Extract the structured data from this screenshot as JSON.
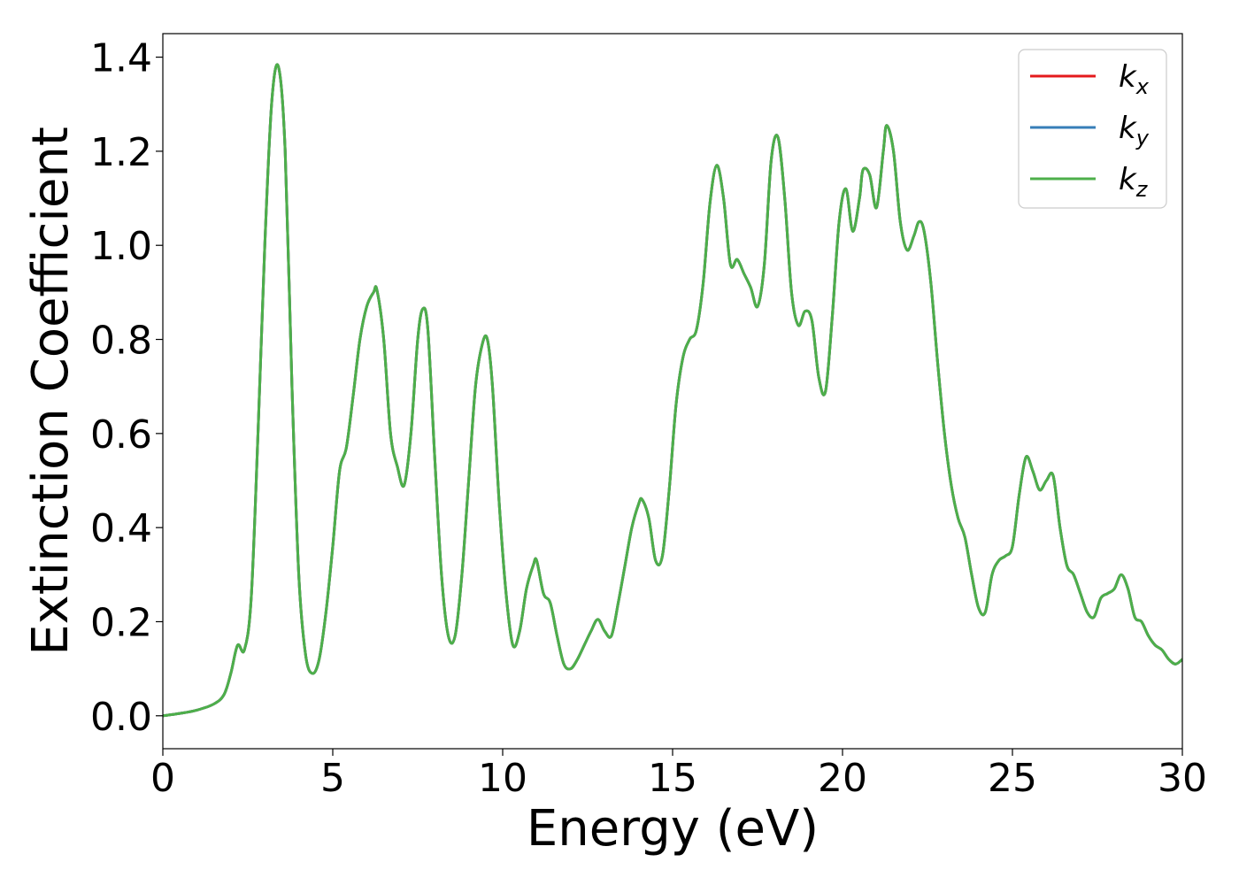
{
  "chart_data": {
    "type": "line",
    "title": "",
    "xlabel": "Energy (eV)",
    "ylabel": "Extinction Coefficient",
    "xlim": [
      0,
      30
    ],
    "ylim": [
      -0.07,
      1.45
    ],
    "xticks": [
      0,
      5,
      10,
      15,
      20,
      25,
      30
    ],
    "xtick_labels": [
      "0",
      "5",
      "10",
      "15",
      "20",
      "25",
      "30"
    ],
    "yticks": [
      0.0,
      0.2,
      0.4,
      0.6,
      0.8,
      1.0,
      1.2,
      1.4
    ],
    "ytick_labels": [
      "0.0",
      "0.2",
      "0.4",
      "0.6",
      "0.8",
      "1.0",
      "1.2",
      "1.4"
    ],
    "grid": false,
    "legend_position": "top-right",
    "series": [
      {
        "name": "k_x",
        "label_base": "k",
        "label_sub": "x",
        "color": "#e41a1c",
        "x": [
          0,
          0.5,
          1.0,
          1.5,
          1.8,
          2.0,
          2.2,
          2.4,
          2.6,
          2.8,
          3.0,
          3.2,
          3.4,
          3.6,
          3.8,
          4.0,
          4.2,
          4.4,
          4.6,
          4.8,
          5.0,
          5.2,
          5.4,
          5.6,
          5.8,
          6.0,
          6.2,
          6.3,
          6.5,
          6.7,
          6.9,
          7.1,
          7.3,
          7.5,
          7.65,
          7.8,
          8.0,
          8.2,
          8.4,
          8.6,
          8.8,
          9.0,
          9.2,
          9.4,
          9.55,
          9.7,
          9.9,
          10.1,
          10.3,
          10.5,
          10.7,
          10.9,
          11.0,
          11.2,
          11.4,
          11.6,
          11.8,
          12.0,
          12.2,
          12.4,
          12.6,
          12.8,
          13.0,
          13.2,
          13.4,
          13.6,
          13.8,
          14.0,
          14.1,
          14.3,
          14.5,
          14.7,
          14.9,
          15.1,
          15.3,
          15.5,
          15.7,
          15.9,
          16.1,
          16.3,
          16.5,
          16.7,
          16.9,
          17.1,
          17.3,
          17.5,
          17.7,
          17.9,
          18.1,
          18.3,
          18.5,
          18.7,
          18.9,
          19.1,
          19.3,
          19.5,
          19.7,
          19.9,
          20.1,
          20.3,
          20.5,
          20.6,
          20.8,
          21.0,
          21.2,
          21.3,
          21.5,
          21.7,
          21.9,
          22.1,
          22.25,
          22.4,
          22.6,
          22.8,
          23.0,
          23.2,
          23.4,
          23.6,
          23.8,
          24.0,
          24.2,
          24.4,
          24.6,
          24.8,
          25.0,
          25.2,
          25.4,
          25.6,
          25.8,
          26.0,
          26.2,
          26.4,
          26.6,
          26.8,
          27.0,
          27.2,
          27.4,
          27.6,
          27.8,
          28.0,
          28.2,
          28.4,
          28.6,
          28.8,
          29.0,
          29.2,
          29.4,
          29.6,
          29.8,
          30.0
        ],
        "y": [
          0.0,
          0.005,
          0.012,
          0.025,
          0.045,
          0.09,
          0.15,
          0.14,
          0.25,
          0.6,
          1.0,
          1.3,
          1.38,
          1.2,
          0.7,
          0.3,
          0.13,
          0.09,
          0.12,
          0.22,
          0.36,
          0.52,
          0.57,
          0.68,
          0.8,
          0.87,
          0.9,
          0.905,
          0.8,
          0.6,
          0.53,
          0.49,
          0.6,
          0.8,
          0.865,
          0.82,
          0.55,
          0.3,
          0.17,
          0.17,
          0.3,
          0.5,
          0.7,
          0.79,
          0.8,
          0.7,
          0.45,
          0.26,
          0.15,
          0.18,
          0.27,
          0.32,
          0.33,
          0.26,
          0.24,
          0.17,
          0.11,
          0.1,
          0.12,
          0.15,
          0.18,
          0.205,
          0.18,
          0.17,
          0.24,
          0.32,
          0.4,
          0.45,
          0.46,
          0.42,
          0.33,
          0.34,
          0.48,
          0.66,
          0.76,
          0.8,
          0.82,
          0.92,
          1.09,
          1.17,
          1.1,
          0.96,
          0.97,
          0.94,
          0.91,
          0.87,
          0.96,
          1.18,
          1.23,
          1.1,
          0.9,
          0.83,
          0.86,
          0.84,
          0.72,
          0.69,
          0.85,
          1.05,
          1.12,
          1.03,
          1.1,
          1.16,
          1.15,
          1.08,
          1.2,
          1.255,
          1.2,
          1.05,
          0.99,
          1.02,
          1.05,
          1.03,
          0.92,
          0.75,
          0.6,
          0.49,
          0.42,
          0.38,
          0.3,
          0.23,
          0.22,
          0.3,
          0.33,
          0.34,
          0.36,
          0.47,
          0.55,
          0.52,
          0.48,
          0.5,
          0.51,
          0.4,
          0.32,
          0.3,
          0.26,
          0.22,
          0.21,
          0.25,
          0.26,
          0.27,
          0.3,
          0.27,
          0.21,
          0.2,
          0.17,
          0.15,
          0.14,
          0.12,
          0.11,
          0.12
        ]
      },
      {
        "name": "k_y",
        "label_base": "k",
        "label_sub": "y",
        "color": "#377eb8",
        "x": [
          0,
          0.5,
          1.0,
          1.5,
          1.8,
          2.0,
          2.2,
          2.4,
          2.6,
          2.8,
          3.0,
          3.2,
          3.4,
          3.6,
          3.8,
          4.0,
          4.2,
          4.4,
          4.6,
          4.8,
          5.0,
          5.2,
          5.4,
          5.6,
          5.8,
          6.0,
          6.2,
          6.3,
          6.5,
          6.7,
          6.9,
          7.1,
          7.3,
          7.5,
          7.65,
          7.8,
          8.0,
          8.2,
          8.4,
          8.6,
          8.8,
          9.0,
          9.2,
          9.4,
          9.55,
          9.7,
          9.9,
          10.1,
          10.3,
          10.5,
          10.7,
          10.9,
          11.0,
          11.2,
          11.4,
          11.6,
          11.8,
          12.0,
          12.2,
          12.4,
          12.6,
          12.8,
          13.0,
          13.2,
          13.4,
          13.6,
          13.8,
          14.0,
          14.1,
          14.3,
          14.5,
          14.7,
          14.9,
          15.1,
          15.3,
          15.5,
          15.7,
          15.9,
          16.1,
          16.3,
          16.5,
          16.7,
          16.9,
          17.1,
          17.3,
          17.5,
          17.7,
          17.9,
          18.1,
          18.3,
          18.5,
          18.7,
          18.9,
          19.1,
          19.3,
          19.5,
          19.7,
          19.9,
          20.1,
          20.3,
          20.5,
          20.6,
          20.8,
          21.0,
          21.2,
          21.3,
          21.5,
          21.7,
          21.9,
          22.1,
          22.25,
          22.4,
          22.6,
          22.8,
          23.0,
          23.2,
          23.4,
          23.6,
          23.8,
          24.0,
          24.2,
          24.4,
          24.6,
          24.8,
          25.0,
          25.2,
          25.4,
          25.6,
          25.8,
          26.0,
          26.2,
          26.4,
          26.6,
          26.8,
          27.0,
          27.2,
          27.4,
          27.6,
          27.8,
          28.0,
          28.2,
          28.4,
          28.6,
          28.8,
          29.0,
          29.2,
          29.4,
          29.6,
          29.8,
          30.0
        ],
        "y": [
          0.0,
          0.005,
          0.012,
          0.025,
          0.045,
          0.09,
          0.15,
          0.14,
          0.25,
          0.6,
          1.0,
          1.3,
          1.38,
          1.2,
          0.7,
          0.3,
          0.13,
          0.09,
          0.12,
          0.22,
          0.36,
          0.52,
          0.57,
          0.68,
          0.8,
          0.87,
          0.9,
          0.905,
          0.8,
          0.6,
          0.53,
          0.49,
          0.6,
          0.8,
          0.865,
          0.82,
          0.55,
          0.3,
          0.17,
          0.17,
          0.3,
          0.5,
          0.7,
          0.79,
          0.8,
          0.7,
          0.45,
          0.26,
          0.15,
          0.18,
          0.27,
          0.32,
          0.33,
          0.26,
          0.24,
          0.17,
          0.11,
          0.1,
          0.12,
          0.15,
          0.18,
          0.205,
          0.18,
          0.17,
          0.24,
          0.32,
          0.4,
          0.45,
          0.46,
          0.42,
          0.33,
          0.34,
          0.48,
          0.66,
          0.76,
          0.8,
          0.82,
          0.92,
          1.09,
          1.17,
          1.1,
          0.96,
          0.97,
          0.94,
          0.91,
          0.87,
          0.96,
          1.18,
          1.23,
          1.1,
          0.9,
          0.83,
          0.86,
          0.84,
          0.72,
          0.69,
          0.85,
          1.05,
          1.12,
          1.03,
          1.1,
          1.16,
          1.15,
          1.08,
          1.2,
          1.255,
          1.2,
          1.05,
          0.99,
          1.02,
          1.05,
          1.03,
          0.92,
          0.75,
          0.6,
          0.49,
          0.42,
          0.38,
          0.3,
          0.23,
          0.22,
          0.3,
          0.33,
          0.34,
          0.36,
          0.47,
          0.55,
          0.52,
          0.48,
          0.5,
          0.51,
          0.4,
          0.32,
          0.3,
          0.26,
          0.22,
          0.21,
          0.25,
          0.26,
          0.27,
          0.3,
          0.27,
          0.21,
          0.2,
          0.17,
          0.15,
          0.14,
          0.12,
          0.11,
          0.12
        ]
      },
      {
        "name": "k_z",
        "label_base": "k",
        "label_sub": "z",
        "color": "#4daf4a",
        "x": [
          0,
          0.5,
          1.0,
          1.5,
          1.8,
          2.0,
          2.2,
          2.4,
          2.6,
          2.8,
          3.0,
          3.2,
          3.4,
          3.6,
          3.8,
          4.0,
          4.2,
          4.4,
          4.6,
          4.8,
          5.0,
          5.2,
          5.4,
          5.6,
          5.8,
          6.0,
          6.2,
          6.3,
          6.5,
          6.7,
          6.9,
          7.1,
          7.3,
          7.5,
          7.65,
          7.8,
          8.0,
          8.2,
          8.4,
          8.6,
          8.8,
          9.0,
          9.2,
          9.4,
          9.55,
          9.7,
          9.9,
          10.1,
          10.3,
          10.5,
          10.7,
          10.9,
          11.0,
          11.2,
          11.4,
          11.6,
          11.8,
          12.0,
          12.2,
          12.4,
          12.6,
          12.8,
          13.0,
          13.2,
          13.4,
          13.6,
          13.8,
          14.0,
          14.1,
          14.3,
          14.5,
          14.7,
          14.9,
          15.1,
          15.3,
          15.5,
          15.7,
          15.9,
          16.1,
          16.3,
          16.5,
          16.7,
          16.9,
          17.1,
          17.3,
          17.5,
          17.7,
          17.9,
          18.1,
          18.3,
          18.5,
          18.7,
          18.9,
          19.1,
          19.3,
          19.5,
          19.7,
          19.9,
          20.1,
          20.3,
          20.5,
          20.6,
          20.8,
          21.0,
          21.2,
          21.3,
          21.5,
          21.7,
          21.9,
          22.1,
          22.25,
          22.4,
          22.6,
          22.8,
          23.0,
          23.2,
          23.4,
          23.6,
          23.8,
          24.0,
          24.2,
          24.4,
          24.6,
          24.8,
          25.0,
          25.2,
          25.4,
          25.6,
          25.8,
          26.0,
          26.2,
          26.4,
          26.6,
          26.8,
          27.0,
          27.2,
          27.4,
          27.6,
          27.8,
          28.0,
          28.2,
          28.4,
          28.6,
          28.8,
          29.0,
          29.2,
          29.4,
          29.6,
          29.8,
          30.0
        ],
        "y": [
          0.0,
          0.005,
          0.012,
          0.025,
          0.045,
          0.09,
          0.15,
          0.14,
          0.25,
          0.6,
          1.0,
          1.3,
          1.38,
          1.2,
          0.7,
          0.3,
          0.13,
          0.09,
          0.12,
          0.22,
          0.36,
          0.52,
          0.57,
          0.68,
          0.8,
          0.87,
          0.9,
          0.905,
          0.8,
          0.6,
          0.53,
          0.49,
          0.6,
          0.8,
          0.865,
          0.82,
          0.55,
          0.3,
          0.17,
          0.17,
          0.3,
          0.5,
          0.7,
          0.79,
          0.8,
          0.7,
          0.45,
          0.26,
          0.15,
          0.18,
          0.27,
          0.32,
          0.33,
          0.26,
          0.24,
          0.17,
          0.11,
          0.1,
          0.12,
          0.15,
          0.18,
          0.205,
          0.18,
          0.17,
          0.24,
          0.32,
          0.4,
          0.45,
          0.46,
          0.42,
          0.33,
          0.34,
          0.48,
          0.66,
          0.76,
          0.8,
          0.82,
          0.92,
          1.09,
          1.17,
          1.1,
          0.96,
          0.97,
          0.94,
          0.91,
          0.87,
          0.96,
          1.18,
          1.23,
          1.1,
          0.9,
          0.83,
          0.86,
          0.84,
          0.72,
          0.69,
          0.85,
          1.05,
          1.12,
          1.03,
          1.1,
          1.16,
          1.15,
          1.08,
          1.2,
          1.255,
          1.2,
          1.05,
          0.99,
          1.02,
          1.05,
          1.03,
          0.92,
          0.75,
          0.6,
          0.49,
          0.42,
          0.38,
          0.3,
          0.23,
          0.22,
          0.3,
          0.33,
          0.34,
          0.36,
          0.47,
          0.55,
          0.52,
          0.48,
          0.5,
          0.51,
          0.4,
          0.32,
          0.3,
          0.26,
          0.22,
          0.21,
          0.25,
          0.26,
          0.27,
          0.3,
          0.27,
          0.21,
          0.2,
          0.17,
          0.15,
          0.14,
          0.12,
          0.11,
          0.12
        ]
      }
    ]
  }
}
